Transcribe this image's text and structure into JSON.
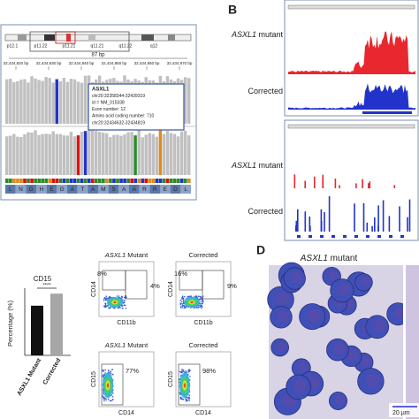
{
  "panel_a": {
    "bands": [
      "p12.1",
      "p11.22",
      "p11.21",
      "q11.21",
      "q11.22",
      "q12"
    ],
    "span": "87 bp",
    "positions": [
      "32,434,820 bp",
      "32,434,830 bp",
      "32,434,840 bp",
      "32,434,850 bp",
      "32,434,860 bp",
      "32,434,870 bp"
    ],
    "popup": [
      "ASXL1",
      "chr20:32358344-32439319",
      "id = NM_015338",
      "Exon number: 12",
      "Amino acid coding number: 710",
      "chr20:32434632-32434819"
    ],
    "sequence": [
      "L",
      "N",
      "G",
      "H",
      "E",
      "G",
      "A",
      "T",
      "A",
      "M",
      "S",
      "A",
      "A",
      "R",
      "R",
      "E",
      "D",
      "L"
    ]
  },
  "panel_b": {
    "letter": "B",
    "labels": [
      {
        "gene": "ASXL1",
        "text": "mutant"
      },
      {
        "text": "Corrected"
      },
      {
        "gene": "ASXL1",
        "text": "mutant"
      },
      {
        "text": "Corrected"
      }
    ]
  },
  "chart_data": {
    "type": "bar",
    "title": "CD15",
    "y_label": "Percentage (%)",
    "significance": "****",
    "categories": [
      "ASXL1 Mutant",
      "Corrected"
    ],
    "series": [
      {
        "name": "CD15",
        "colors": [
          "#111111",
          "#a6a6a6"
        ],
        "values": [
          78,
          97
        ]
      }
    ],
    "ylim": [
      0,
      100
    ]
  },
  "flow": {
    "plots": [
      {
        "title": {
          "gene": "ASXL1",
          "text": "Mutant"
        },
        "x_label": "CD11b",
        "y_label": "CD14",
        "gates": [
          "8%",
          "4%"
        ]
      },
      {
        "title": {
          "text": "Corrected"
        },
        "x_label": "CD11b",
        "y_label": "CD14",
        "gates": [
          "16%",
          "9%"
        ]
      },
      {
        "title": {
          "gene": "ASXL1",
          "text": "Mutant"
        },
        "x_label": "CD14",
        "y_label": "CD15",
        "gates": [
          "77%"
        ]
      },
      {
        "title": {
          "text": "Corrected"
        },
        "x_label": "CD14",
        "y_label": "CD15",
        "gates": [
          "98%"
        ]
      }
    ]
  },
  "panel_d": {
    "letter": "D",
    "title": {
      "gene": "ASXL1",
      "text": "mutant"
    },
    "scale": "20 µm"
  }
}
